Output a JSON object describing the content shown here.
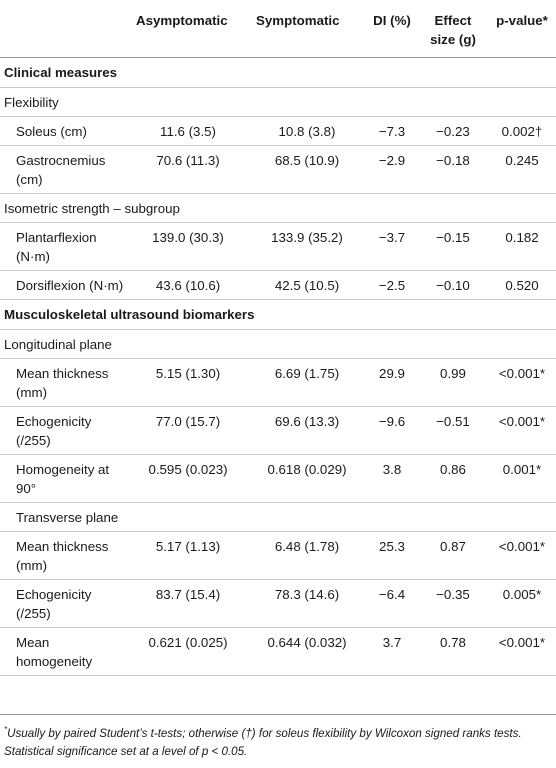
{
  "header": {
    "col_measure": "",
    "col_asym": "Asymptomatic",
    "col_sym": "Symptomatic",
    "col_di": "DI (%)",
    "col_effect": "Effect size (g)",
    "col_p": "p-value*"
  },
  "rows": [
    {
      "type": "section",
      "label": "Clinical measures"
    },
    {
      "type": "group",
      "label": "Flexibility"
    },
    {
      "type": "data",
      "label": "Soleus (cm)",
      "asym": "11.6 (3.5)",
      "sym": "10.8 (3.8)",
      "di": "−7.3",
      "g": "−0.23",
      "p": "0.002†"
    },
    {
      "type": "data",
      "label": "Gastrocnemius (cm)",
      "asym": "70.6 (11.3)",
      "sym": "68.5 (10.9)",
      "di": "−2.9",
      "g": "−0.18",
      "p": "0.245"
    },
    {
      "type": "group",
      "label": "Isometric strength – subgroup"
    },
    {
      "type": "data",
      "label": "Plantarflexion (N·m)",
      "asym": "139.0 (30.3)",
      "sym": "133.9 (35.2)",
      "di": "−3.7",
      "g": "−0.15",
      "p": "0.182"
    },
    {
      "type": "data",
      "label": "Dorsiflexion (N·m)",
      "asym": "43.6 (10.6)",
      "sym": "42.5 (10.5)",
      "di": "−2.5",
      "g": "−0.10",
      "p": "0.520"
    },
    {
      "type": "section",
      "label": "Musculoskeletal ultrasound biomarkers"
    },
    {
      "type": "group",
      "label": "Longitudinal plane"
    },
    {
      "type": "data",
      "label": "Mean thickness (mm)",
      "asym": "5.15 (1.30)",
      "sym": "6.69 (1.75)",
      "di": "29.9",
      "g": "0.99",
      "p": "<0.001*"
    },
    {
      "type": "data",
      "label": "Echogenicity (/255)",
      "asym": "77.0 (15.7)",
      "sym": "69.6 (13.3)",
      "di": "−9.6",
      "g": "−0.51",
      "p": "<0.001*"
    },
    {
      "type": "data",
      "label": "Homogeneity at 90°",
      "asym": "0.595 (0.023)",
      "sym": "0.618 (0.029)",
      "di": "3.8",
      "g": "0.86",
      "p": "0.001*"
    },
    {
      "type": "indent",
      "label": "Transverse plane"
    },
    {
      "type": "data",
      "label": "Mean thickness (mm)",
      "asym": "5.17 (1.13)",
      "sym": "6.48 (1.78)",
      "di": "25.3",
      "g": "0.87",
      "p": "<0.001*"
    },
    {
      "type": "data",
      "label": "Echogenicity (/255)",
      "asym": "83.7 (15.4)",
      "sym": "78.3 (14.6)",
      "di": "−6.4",
      "g": "−0.35",
      "p": "0.005*"
    },
    {
      "type": "data",
      "label": "Mean homogeneity",
      "asym": "0.621 (0.025)",
      "sym": "0.644 (0.032)",
      "di": "3.7",
      "g": "0.78",
      "p": "<0.001*"
    }
  ],
  "footnote": {
    "mark": "*",
    "text": "Usually by paired Student’s t-tests; otherwise (†) for soleus flexibility by Wilcoxon signed ranks tests. Statistical significance set at a level of p < 0.05."
  }
}
